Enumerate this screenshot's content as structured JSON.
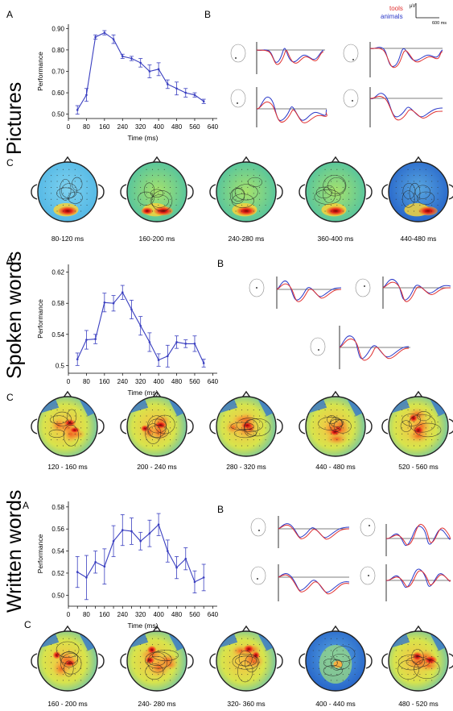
{
  "panels": [
    {
      "row_label": "Pictures",
      "label_a": "A",
      "label_b": "B",
      "label_c": "C",
      "chart_data": {
        "type": "line",
        "xlabel": "Time (ms)",
        "ylabel": "Performance",
        "xticks": [
          0,
          80,
          160,
          240,
          320,
          400,
          480,
          560,
          640
        ],
        "yticks": [
          0.5,
          0.6,
          0.7,
          0.8,
          0.9
        ],
        "ylim": [
          0.48,
          0.92
        ],
        "xlim": [
          0,
          660
        ],
        "x": [
          40,
          80,
          120,
          160,
          200,
          240,
          280,
          320,
          360,
          400,
          440,
          480,
          520,
          560,
          600
        ],
        "y": [
          0.52,
          0.59,
          0.86,
          0.88,
          0.85,
          0.77,
          0.76,
          0.74,
          0.7,
          0.71,
          0.64,
          0.62,
          0.6,
          0.59,
          0.56
        ],
        "err": [
          0.02,
          0.03,
          0.01,
          0.01,
          0.02,
          0.01,
          0.01,
          0.02,
          0.03,
          0.03,
          0.02,
          0.03,
          0.02,
          0.01,
          0.01
        ]
      },
      "legend": {
        "tools": "tools",
        "animals": "animals",
        "scale_unit": "µV",
        "scale_time": "600 ms"
      },
      "maps": [
        "80-120 ms",
        "160-200 ms",
        "240-280 ms",
        "360-400 ms",
        "440-480 ms"
      ]
    },
    {
      "row_label": "Spoken words",
      "label_a": "A",
      "label_b": "B",
      "label_c": "C",
      "chart_data": {
        "type": "line",
        "xlabel": "Time (ms)",
        "ylabel": "Performance",
        "xticks": [
          0,
          80,
          160,
          240,
          320,
          400,
          480,
          560,
          640
        ],
        "yticks": [
          0.5,
          0.54,
          0.58,
          0.62
        ],
        "ylim": [
          0.49,
          0.63
        ],
        "xlim": [
          0,
          660
        ],
        "x": [
          40,
          80,
          120,
          160,
          200,
          240,
          280,
          320,
          360,
          400,
          440,
          480,
          520,
          560,
          600
        ],
        "y": [
          0.508,
          0.533,
          0.534,
          0.581,
          0.58,
          0.594,
          0.572,
          0.551,
          0.53,
          0.507,
          0.512,
          0.53,
          0.528,
          0.528,
          0.503
        ],
        "err": [
          0.008,
          0.012,
          0.006,
          0.012,
          0.01,
          0.009,
          0.012,
          0.012,
          0.012,
          0.008,
          0.014,
          0.008,
          0.005,
          0.01,
          0.005
        ]
      },
      "maps": [
        "120 - 160 ms",
        "200 - 240 ms",
        "280 - 320 ms",
        "440 - 480 ms",
        "520 - 560 ms"
      ]
    },
    {
      "row_label": "Written words",
      "label_a": "A",
      "label_b": "B",
      "label_c": "C",
      "chart_data": {
        "type": "line",
        "xlabel": "Time (ms)",
        "ylabel": "Performance",
        "xticks": [
          0,
          40,
          80,
          120,
          160,
          200,
          240,
          280,
          320,
          360,
          400,
          440,
          480,
          520,
          560,
          600,
          640
        ],
        "xticklabels": [
          "0",
          "40",
          "80",
          "120",
          "160",
          "200",
          "240",
          "280",
          "320",
          "360",
          "400",
          "440",
          "480",
          "520",
          "560",
          "600",
          "640"
        ],
        "yticks": [
          0.5,
          0.52,
          0.54,
          0.56,
          0.58
        ],
        "ylim": [
          0.49,
          0.585
        ],
        "xlim": [
          0,
          660
        ],
        "x": [
          40,
          80,
          120,
          160,
          200,
          240,
          280,
          320,
          360,
          400,
          440,
          480,
          520,
          560,
          600
        ],
        "y": [
          0.521,
          0.516,
          0.53,
          0.526,
          0.549,
          0.559,
          0.558,
          0.549,
          0.556,
          0.564,
          0.54,
          0.525,
          0.533,
          0.512,
          0.516
        ],
        "err": [
          0.014,
          0.02,
          0.01,
          0.016,
          0.014,
          0.014,
          0.012,
          0.008,
          0.012,
          0.01,
          0.01,
          0.01,
          0.01,
          0.01,
          0.012
        ]
      },
      "maps": [
        "160 - 200 ms",
        "240- 280 ms",
        "320- 360 ms",
        "400 - 440 ms",
        "480 - 520 ms"
      ]
    }
  ],
  "colors": {
    "line": "#3a3fc0",
    "tools": "#e03030",
    "animals": "#2a38c8"
  }
}
